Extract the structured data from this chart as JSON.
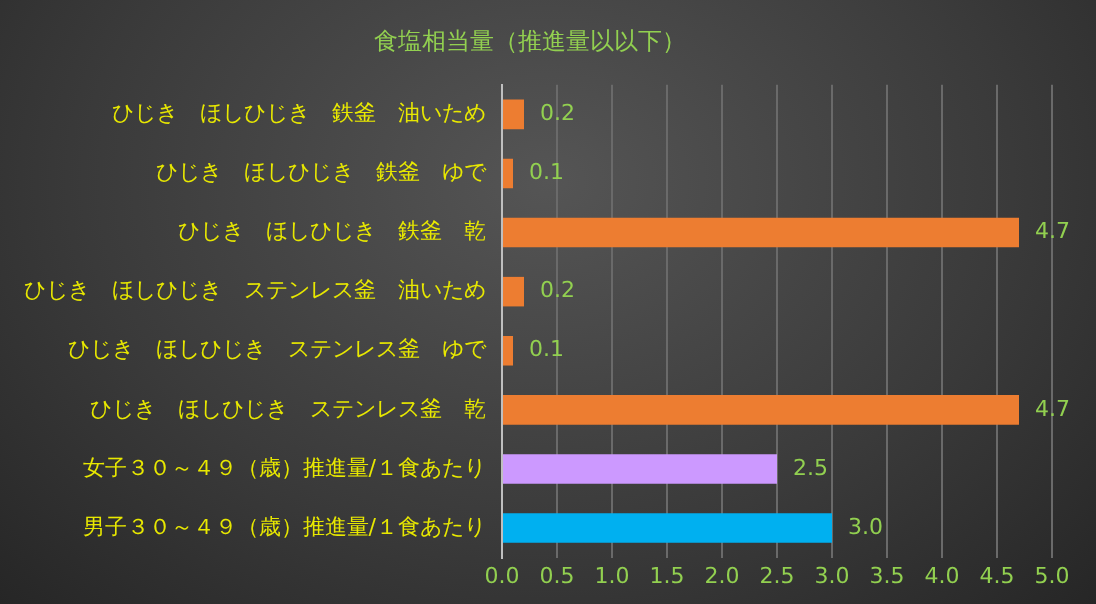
{
  "chart_data": {
    "type": "bar",
    "orientation": "horizontal",
    "title": "食塩相当量（推進量以以下）",
    "categories": [
      "ひじき　ほしひじき　鉄釜　油いため",
      "ひじき　ほしひじき　鉄釜　ゆで",
      "ひじき　ほしひじき　鉄釜　乾",
      "ひじき　ほしひじき　ステンレス釜　油いため",
      "ひじき　ほしひじき　ステンレス釜　ゆで",
      "ひじき　ほしひじき　ステンレス釜　乾",
      "女子３０～４９（歳）推進量/１食あたり",
      "男子３０～４９（歳）推進量/１食あたり"
    ],
    "values": [
      0.2,
      0.1,
      4.7,
      0.2,
      0.1,
      4.7,
      2.5,
      3.0
    ],
    "colors": [
      "#ed7d31",
      "#ed7d31",
      "#ed7d31",
      "#ed7d31",
      "#ed7d31",
      "#ed7d31",
      "#cc99ff",
      "#00b0f0"
    ],
    "value_labels": [
      "0.2",
      "0.1",
      "4.7",
      "0.2",
      "0.1",
      "4.7",
      "2.5",
      "3.0"
    ],
    "xlim": [
      0,
      5
    ],
    "xticks": [
      {
        "value": 0,
        "label": "0.0"
      },
      {
        "value": 0.5,
        "label": "0.5"
      },
      {
        "value": 1,
        "label": "1.0"
      },
      {
        "value": 1.5,
        "label": "1.5"
      },
      {
        "value": 2,
        "label": "2.0"
      },
      {
        "value": 2.5,
        "label": "2.5"
      },
      {
        "value": 3,
        "label": "3.0"
      },
      {
        "value": 3.5,
        "label": "3.5"
      },
      {
        "value": 4,
        "label": "4.0"
      },
      {
        "value": 4.5,
        "label": "4.5"
      },
      {
        "value": 5,
        "label": "5.0"
      }
    ],
    "grid": "x",
    "legend": false
  }
}
